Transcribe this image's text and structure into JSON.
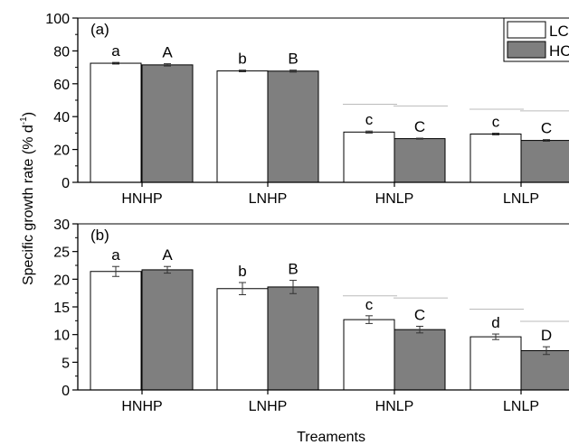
{
  "figure": {
    "ylabel": "Specific growth rate (% d",
    "ylabel_sup": "-1",
    "ylabel_close": ")",
    "xlabel": "Treaments"
  },
  "colors": {
    "LC": "#ffffff",
    "HC": "#7f7f7f",
    "axis": "#000000",
    "sigline": "#bbbbbb"
  },
  "legend": {
    "placement": "top-right",
    "items": [
      {
        "key": "LC",
        "label": "LC"
      },
      {
        "key": "HC",
        "label": "HC"
      }
    ]
  },
  "chart_data": [
    {
      "type": "bar",
      "panel_label": "(a)",
      "categories": [
        "HNHP",
        "LNHP",
        "HNLP",
        "LNLP"
      ],
      "ylim": [
        0,
        100
      ],
      "yticks": [
        0,
        20,
        40,
        60,
        80,
        100
      ],
      "series": [
        {
          "name": "LC",
          "values": [
            72.5,
            67.8,
            30.6,
            29.4
          ],
          "errors": [
            0.5,
            0.5,
            0.6,
            0.5
          ],
          "letters": [
            "a",
            "b",
            "c",
            "c"
          ]
        },
        {
          "name": "HC",
          "values": [
            71.5,
            67.7,
            26.6,
            25.5
          ],
          "errors": [
            0.7,
            0.6,
            0.3,
            0.5
          ],
          "letters": [
            "A",
            "B",
            "C",
            "C"
          ]
        }
      ],
      "sig_lines": [
        {
          "category": 2,
          "series": 0,
          "value": 47.5
        },
        {
          "category": 2,
          "series": 1,
          "value": 46.5
        },
        {
          "category": 3,
          "series": 0,
          "value": 44.5
        },
        {
          "category": 3,
          "series": 1,
          "value": 43.5
        }
      ]
    },
    {
      "type": "bar",
      "panel_label": "(b)",
      "categories": [
        "HNHP",
        "LNHP",
        "HNLP",
        "LNLP"
      ],
      "ylim": [
        0,
        30
      ],
      "yticks": [
        0,
        5,
        10,
        15,
        20,
        25,
        30
      ],
      "series": [
        {
          "name": "LC",
          "values": [
            21.4,
            18.3,
            12.7,
            9.6
          ],
          "errors": [
            0.9,
            1.1,
            0.7,
            0.5
          ],
          "letters": [
            "a",
            "b",
            "c",
            "d"
          ]
        },
        {
          "name": "HC",
          "values": [
            21.7,
            18.6,
            10.9,
            7.1
          ],
          "errors": [
            0.6,
            1.2,
            0.6,
            0.7
          ],
          "letters": [
            "A",
            "B",
            "C",
            "D"
          ]
        }
      ],
      "sig_lines": [
        {
          "category": 2,
          "series": 0,
          "value": 17.0
        },
        {
          "category": 2,
          "series": 1,
          "value": 16.6
        },
        {
          "category": 3,
          "series": 0,
          "value": 14.6
        },
        {
          "category": 3,
          "series": 1,
          "value": 12.4
        }
      ]
    }
  ]
}
